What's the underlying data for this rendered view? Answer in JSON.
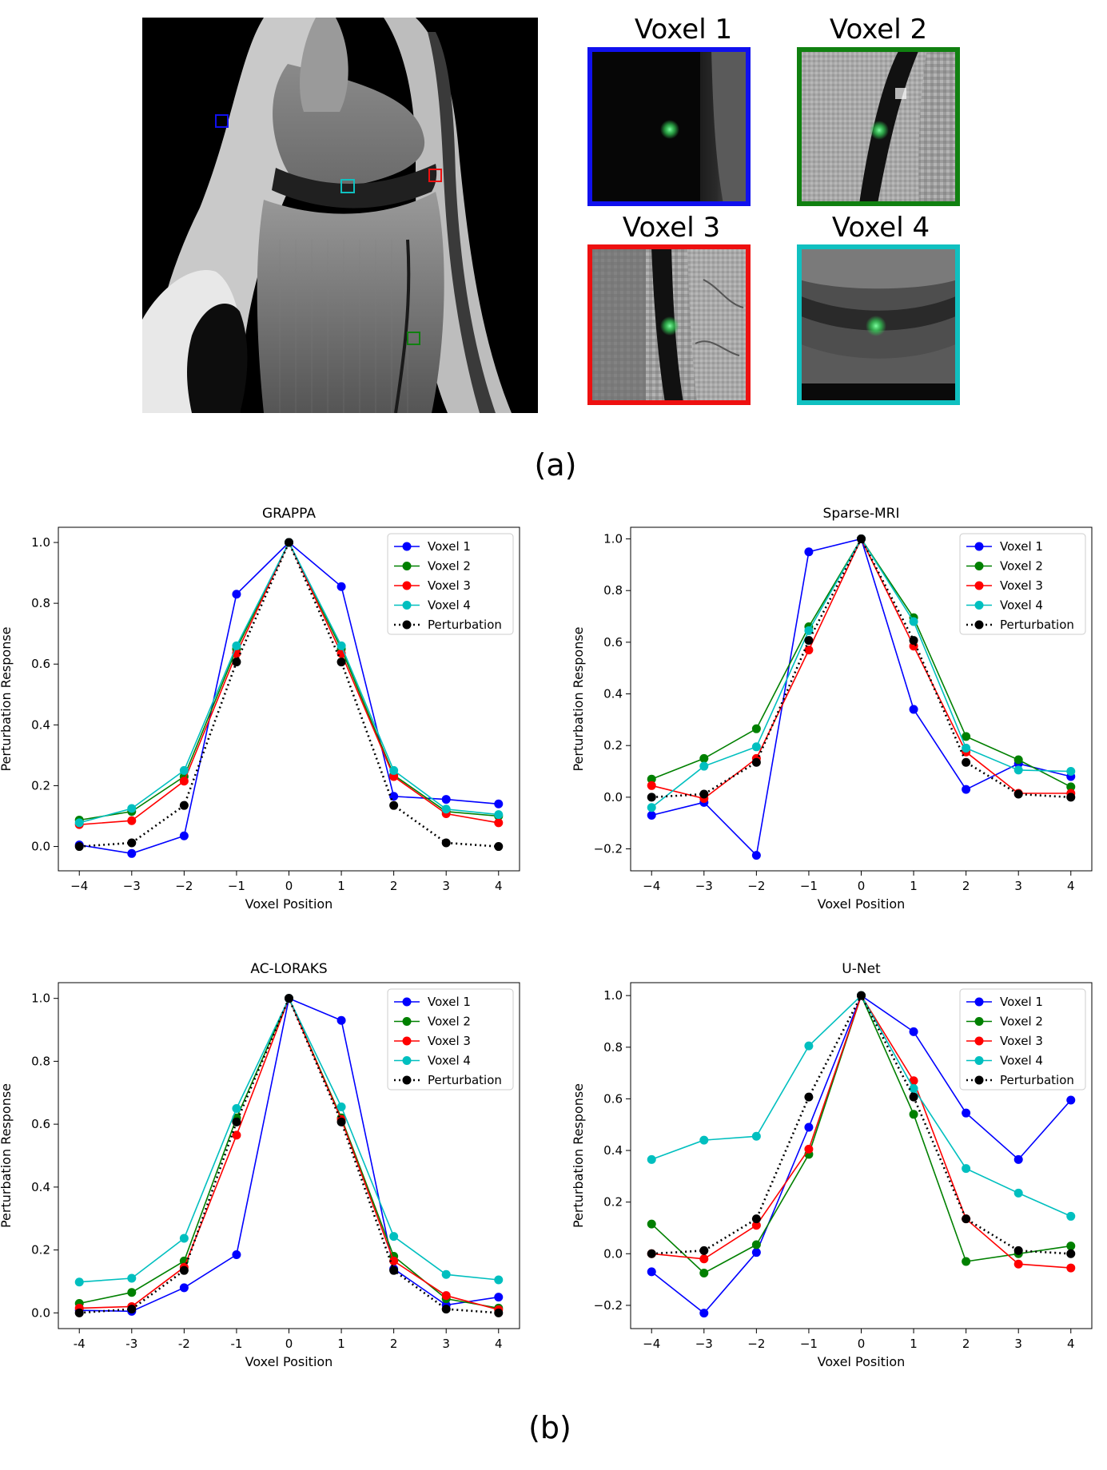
{
  "panel_a": {
    "label": "(a)",
    "insets": [
      {
        "title": "Voxel 1",
        "color": "#1010ee"
      },
      {
        "title": "Voxel 2",
        "color": "#108010"
      },
      {
        "title": "Voxel 3",
        "color": "#ee1010"
      },
      {
        "title": "Voxel 4",
        "color": "#10c0c0"
      }
    ]
  },
  "panel_b": {
    "label": "(b)"
  },
  "chart_data": [
    {
      "type": "line",
      "title": "GRAPPA",
      "xlabel": "Voxel Position",
      "ylabel": "Perturbation Response",
      "x": [
        -4,
        -3,
        -2,
        -1,
        0,
        1,
        2,
        3,
        4
      ],
      "xticks": [
        "−4",
        "−3",
        "−2",
        "−1",
        "0",
        "1",
        "2",
        "3",
        "4"
      ],
      "ylim": [
        -0.08,
        1.05
      ],
      "yticks": [
        0.0,
        0.2,
        0.4,
        0.6,
        0.8,
        1.0
      ],
      "ytick_labels": [
        "0.0",
        "0.2",
        "0.4",
        "0.6",
        "0.8",
        "1.0"
      ],
      "legend": "upper-right",
      "series": [
        {
          "name": "Voxel 1",
          "color": "#0000ff",
          "dotted": false,
          "values": [
            0.005,
            -0.023,
            0.035,
            0.83,
            1.0,
            0.855,
            0.165,
            0.155,
            0.14
          ]
        },
        {
          "name": "Voxel 2",
          "color": "#008000",
          "dotted": false,
          "values": [
            0.087,
            0.115,
            0.23,
            0.65,
            1.0,
            0.65,
            0.235,
            0.115,
            0.1
          ]
        },
        {
          "name": "Voxel 3",
          "color": "#ff0000",
          "dotted": false,
          "values": [
            0.072,
            0.085,
            0.215,
            0.635,
            1.0,
            0.635,
            0.23,
            0.108,
            0.078
          ]
        },
        {
          "name": "Voxel 4",
          "color": "#00bfbf",
          "dotted": false,
          "values": [
            0.078,
            0.125,
            0.25,
            0.66,
            1.0,
            0.66,
            0.25,
            0.123,
            0.105
          ]
        },
        {
          "name": "Perturbation",
          "color": "#000000",
          "dotted": true,
          "values": [
            0.0,
            0.012,
            0.135,
            0.607,
            1.0,
            0.607,
            0.135,
            0.012,
            0.0
          ]
        }
      ]
    },
    {
      "type": "line",
      "title": "Sparse-MRI",
      "xlabel": "Voxel Position",
      "ylabel": "Perturbation Response",
      "x": [
        -4,
        -3,
        -2,
        -1,
        0,
        1,
        2,
        3,
        4
      ],
      "xticks": [
        "−4",
        "−3",
        "−2",
        "−1",
        "0",
        "1",
        "2",
        "3",
        "4"
      ],
      "ylim": [
        -0.285,
        1.045
      ],
      "yticks": [
        -0.2,
        0.0,
        0.2,
        0.4,
        0.6,
        0.8,
        1.0
      ],
      "ytick_labels": [
        "−0.2",
        "0.0",
        "0.2",
        "0.4",
        "0.6",
        "0.8",
        "1.0"
      ],
      "legend": "upper-right",
      "series": [
        {
          "name": "Voxel 1",
          "color": "#0000ff",
          "dotted": false,
          "values": [
            -0.07,
            -0.02,
            -0.225,
            0.95,
            1.0,
            0.34,
            0.03,
            0.13,
            0.08
          ]
        },
        {
          "name": "Voxel 2",
          "color": "#008000",
          "dotted": false,
          "values": [
            0.07,
            0.15,
            0.265,
            0.66,
            1.0,
            0.695,
            0.235,
            0.145,
            0.04
          ]
        },
        {
          "name": "Voxel 3",
          "color": "#ff0000",
          "dotted": false,
          "values": [
            0.045,
            -0.005,
            0.15,
            0.57,
            1.0,
            0.585,
            0.175,
            0.015,
            0.015
          ]
        },
        {
          "name": "Voxel 4",
          "color": "#00bfbf",
          "dotted": false,
          "values": [
            -0.04,
            0.12,
            0.195,
            0.645,
            1.0,
            0.68,
            0.19,
            0.105,
            0.1
          ]
        },
        {
          "name": "Perturbation",
          "color": "#000000",
          "dotted": true,
          "values": [
            0.0,
            0.012,
            0.135,
            0.607,
            1.0,
            0.607,
            0.135,
            0.012,
            0.0
          ]
        }
      ]
    },
    {
      "type": "line",
      "title": "AC-LORAKS",
      "xlabel": "Voxel Position",
      "ylabel": "Perturbation Response",
      "x": [
        -4,
        -3,
        -2,
        -1,
        0,
        1,
        2,
        3,
        4
      ],
      "xticks": [
        "-4",
        "-3",
        "-2",
        "-1",
        "0",
        "1",
        "2",
        "3",
        "4"
      ],
      "ylim": [
        -0.05,
        1.05
      ],
      "yticks": [
        0.0,
        0.2,
        0.4,
        0.6,
        0.8,
        1.0
      ],
      "ytick_labels": [
        "0.0",
        "0.2",
        "0.4",
        "0.6",
        "0.8",
        "1.0"
      ],
      "legend": "upper-right",
      "series": [
        {
          "name": "Voxel 1",
          "color": "#0000ff",
          "dotted": false,
          "values": [
            0.008,
            0.005,
            0.08,
            0.185,
            1.0,
            0.93,
            0.14,
            0.025,
            0.05
          ]
        },
        {
          "name": "Voxel 2",
          "color": "#008000",
          "dotted": false,
          "values": [
            0.03,
            0.065,
            0.165,
            0.62,
            1.0,
            0.62,
            0.18,
            0.045,
            0.015
          ]
        },
        {
          "name": "Voxel 3",
          "color": "#ff0000",
          "dotted": false,
          "values": [
            0.015,
            0.02,
            0.145,
            0.565,
            1.0,
            0.615,
            0.165,
            0.055,
            0.01
          ]
        },
        {
          "name": "Voxel 4",
          "color": "#00bfbf",
          "dotted": false,
          "values": [
            0.098,
            0.11,
            0.237,
            0.65,
            1.0,
            0.655,
            0.243,
            0.122,
            0.105
          ]
        },
        {
          "name": "Perturbation",
          "color": "#000000",
          "dotted": true,
          "values": [
            0.0,
            0.012,
            0.135,
            0.607,
            1.0,
            0.607,
            0.135,
            0.012,
            0.0
          ]
        }
      ]
    },
    {
      "type": "line",
      "title": "U-Net",
      "xlabel": "Voxel Position",
      "ylabel": "Perturbation Response",
      "x": [
        -4,
        -3,
        -2,
        -1,
        0,
        1,
        2,
        3,
        4
      ],
      "xticks": [
        "−4",
        "−3",
        "−2",
        "−1",
        "0",
        "1",
        "2",
        "3",
        "4"
      ],
      "ylim": [
        -0.29,
        1.05
      ],
      "yticks": [
        -0.2,
        0.0,
        0.2,
        0.4,
        0.6,
        0.8,
        1.0
      ],
      "ytick_labels": [
        "−0.2",
        "0.0",
        "0.2",
        "0.4",
        "0.6",
        "0.8",
        "1.0"
      ],
      "legend": "upper-right",
      "series": [
        {
          "name": "Voxel 1",
          "color": "#0000ff",
          "dotted": false,
          "values": [
            -0.07,
            -0.23,
            0.005,
            0.49,
            1.0,
            0.86,
            0.545,
            0.365,
            0.595
          ]
        },
        {
          "name": "Voxel 2",
          "color": "#008000",
          "dotted": false,
          "values": [
            0.115,
            -0.075,
            0.035,
            0.385,
            1.0,
            0.54,
            -0.03,
            0.0,
            0.03
          ]
        },
        {
          "name": "Voxel 3",
          "color": "#ff0000",
          "dotted": false,
          "values": [
            0.0,
            -0.02,
            0.11,
            0.405,
            1.0,
            0.67,
            0.135,
            -0.04,
            -0.055
          ]
        },
        {
          "name": "Voxel 4",
          "color": "#00bfbf",
          "dotted": false,
          "values": [
            0.365,
            0.44,
            0.455,
            0.805,
            1.0,
            0.64,
            0.33,
            0.235,
            0.145
          ]
        },
        {
          "name": "Perturbation",
          "color": "#000000",
          "dotted": true,
          "values": [
            0.0,
            0.012,
            0.135,
            0.607,
            1.0,
            0.607,
            0.135,
            0.012,
            0.0
          ]
        }
      ]
    }
  ]
}
